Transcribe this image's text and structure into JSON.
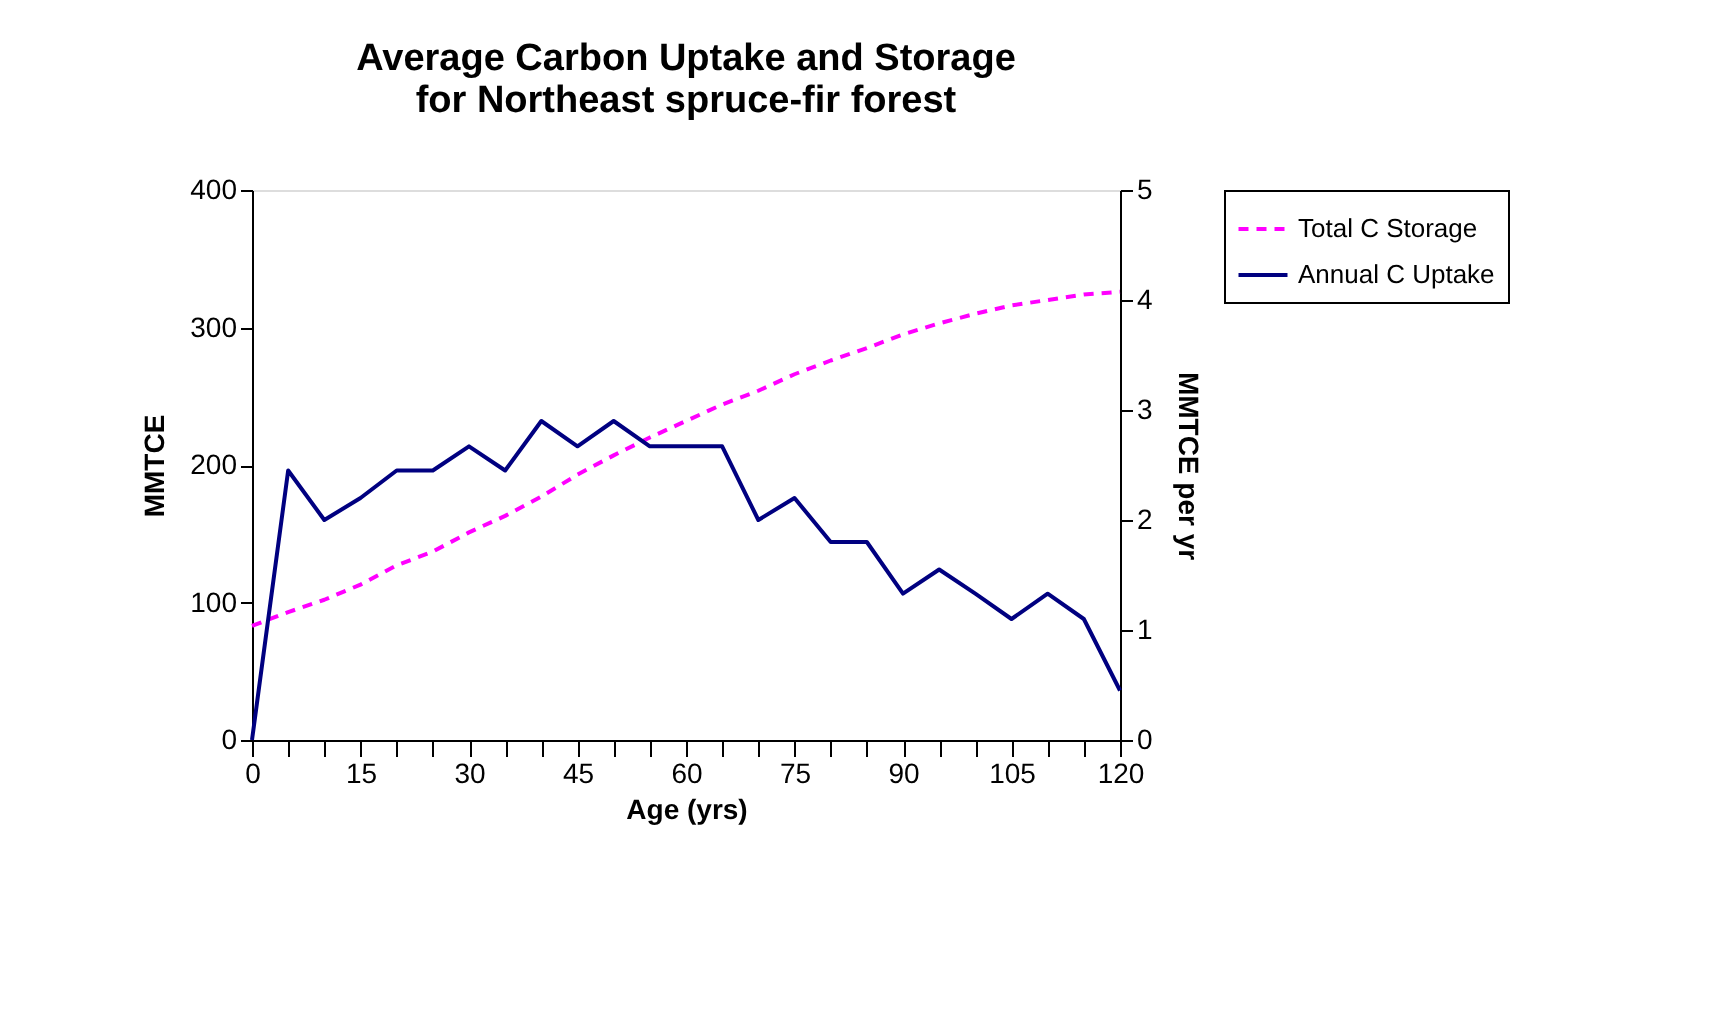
{
  "chart_data": {
    "type": "line",
    "title": [
      "Average Carbon Uptake and Storage",
      "for Northeast spruce-fir forest"
    ],
    "xlabel": "Age (yrs)",
    "ylabel": "MMTCE",
    "y2label": "MMTCE per yr",
    "x": [
      0,
      5,
      10,
      15,
      20,
      25,
      30,
      35,
      40,
      45,
      50,
      55,
      60,
      65,
      70,
      75,
      80,
      85,
      90,
      95,
      100,
      105,
      110,
      115,
      120
    ],
    "series": [
      {
        "name": "Total C Storage",
        "color": "#ff00ff",
        "line_style": "dashed",
        "axis": "y",
        "values": [
          83,
          93,
          102,
          113,
          127,
          137,
          151,
          163,
          177,
          193,
          207,
          220,
          232,
          244,
          254,
          266,
          276,
          285,
          295,
          303,
          310,
          316,
          320,
          324,
          326
        ]
      },
      {
        "name": "Annual C Uptake",
        "color": "#000080",
        "line_style": "solid",
        "axis": "y2",
        "values": [
          0,
          2.45,
          2.0,
          2.2,
          2.45,
          2.45,
          2.67,
          2.45,
          2.9,
          2.67,
          2.9,
          2.67,
          2.67,
          2.67,
          2.0,
          2.2,
          1.8,
          1.8,
          1.33,
          1.55,
          1.33,
          1.1,
          1.33,
          1.1,
          0.45
        ]
      }
    ],
    "xlim": [
      0,
      120
    ],
    "xticks": [
      0,
      {
        "value": 5,
        "label": null
      },
      {
        "value": 10,
        "label": null
      },
      15,
      {
        "value": 20,
        "label": null
      },
      {
        "value": 25,
        "label": null
      },
      30,
      {
        "value": 35,
        "label": null
      },
      {
        "value": 40,
        "label": null
      },
      45,
      {
        "value": 50,
        "label": null
      },
      {
        "value": 55,
        "label": null
      },
      60,
      {
        "value": 65,
        "label": null
      },
      {
        "value": 70,
        "label": null
      },
      75,
      {
        "value": 80,
        "label": null
      },
      {
        "value": 85,
        "label": null
      },
      90,
      {
        "value": 95,
        "label": null
      },
      {
        "value": 100,
        "label": null
      },
      105,
      {
        "value": 110,
        "label": null
      },
      {
        "value": 115,
        "label": null
      },
      120
    ],
    "ylim": [
      0,
      400
    ],
    "yticks": [
      0,
      100,
      200,
      300,
      400
    ],
    "y2lim": [
      0,
      5
    ],
    "y2ticks": [
      0,
      1,
      2,
      3,
      4,
      5
    ],
    "grid": false,
    "legend": "right",
    "marker": "none"
  }
}
